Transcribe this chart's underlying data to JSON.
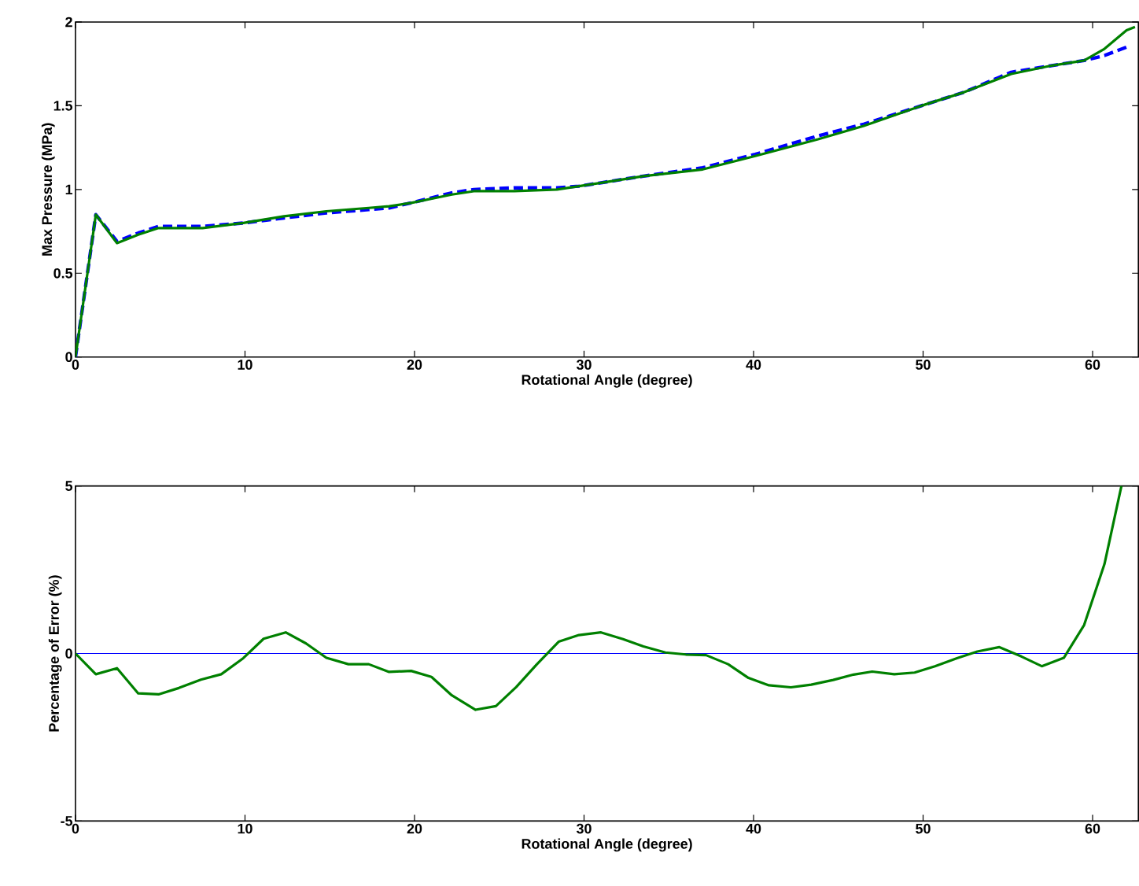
{
  "chart_data": [
    {
      "type": "line",
      "xlabel": "Rotational Angle (degree)",
      "ylabel": "Max Pressure (MPa)",
      "xlim": [
        0,
        62.7
      ],
      "ylim": [
        0,
        2
      ],
      "xticks": [
        0,
        10,
        20,
        30,
        40,
        50,
        60
      ],
      "yticks": [
        0,
        0.5,
        1,
        1.5,
        2
      ],
      "series": [
        {
          "color": "#0000ff",
          "line_style": "dashed",
          "x": [
            0,
            1.2,
            2.45,
            3.7,
            4.9,
            7.5,
            9.9,
            12.3,
            14.8,
            17.3,
            18.5,
            19.8,
            22.2,
            23.5,
            25.9,
            28.4,
            29.7,
            31.0,
            33.5,
            37.0,
            40.1,
            43.8,
            46.5,
            49.9,
            52.4,
            55.2,
            57.6,
            59.5,
            60.7,
            62.0
          ],
          "values": [
            0,
            0.85,
            0.69,
            0.74,
            0.78,
            0.78,
            0.8,
            0.83,
            0.86,
            0.88,
            0.89,
            0.92,
            0.98,
            1.0,
            1.01,
            1.01,
            1.02,
            1.04,
            1.08,
            1.13,
            1.21,
            1.32,
            1.39,
            1.5,
            1.58,
            1.7,
            1.74,
            1.77,
            1.8,
            1.85
          ]
        },
        {
          "color": "#008000",
          "line_style": "solid",
          "x": [
            0,
            1.2,
            2.45,
            3.7,
            4.9,
            7.5,
            9.9,
            12.3,
            14.8,
            17.3,
            18.5,
            19.8,
            22.2,
            23.5,
            25.9,
            28.4,
            29.7,
            31.0,
            33.5,
            37.0,
            40.1,
            43.8,
            46.5,
            49.9,
            52.4,
            55.2,
            57.6,
            59.5,
            60.7,
            62.0,
            62.5
          ],
          "values": [
            0,
            0.85,
            0.68,
            0.73,
            0.77,
            0.77,
            0.8,
            0.84,
            0.87,
            0.89,
            0.9,
            0.92,
            0.97,
            0.99,
            0.99,
            1.0,
            1.02,
            1.04,
            1.08,
            1.12,
            1.2,
            1.3,
            1.38,
            1.5,
            1.58,
            1.69,
            1.74,
            1.77,
            1.84,
            1.95,
            1.97
          ]
        }
      ]
    },
    {
      "type": "line",
      "xlabel": "Rotational Angle (degree)",
      "ylabel": "Percentage of Error (%)",
      "xlim": [
        0,
        62.7
      ],
      "ylim": [
        -5,
        5
      ],
      "xticks": [
        0,
        10,
        20,
        30,
        40,
        50,
        60
      ],
      "yticks": [
        -5,
        0,
        5
      ],
      "ref_lines": [
        {
          "axis": "y",
          "value": 0,
          "color": "#0000ff",
          "line_style": "solid"
        }
      ],
      "series": [
        {
          "color": "#008000",
          "line_style": "solid",
          "x": [
            0,
            1.2,
            2.45,
            3.7,
            4.9,
            6.1,
            7.4,
            8.6,
            9.9,
            11.1,
            12.4,
            13.6,
            14.8,
            16.1,
            17.3,
            18.5,
            19.8,
            21.0,
            22.2,
            23.6,
            24.8,
            26.0,
            27.2,
            28.5,
            29.7,
            31.0,
            32.3,
            33.5,
            34.8,
            36.0,
            37.2,
            38.5,
            39.7,
            40.9,
            42.2,
            43.4,
            44.7,
            45.9,
            47.0,
            48.3,
            49.5,
            50.7,
            52.0,
            53.2,
            54.5,
            55.8,
            57.0,
            58.3,
            59.5,
            60.7,
            61.7
          ],
          "values": [
            0,
            -0.62,
            -0.44,
            -1.19,
            -1.22,
            -1.03,
            -0.78,
            -0.62,
            -0.14,
            0.44,
            0.63,
            0.3,
            -0.13,
            -0.32,
            -0.32,
            -0.55,
            -0.52,
            -0.7,
            -1.25,
            -1.68,
            -1.57,
            -1.0,
            -0.33,
            0.35,
            0.55,
            0.63,
            0.43,
            0.21,
            0.03,
            -0.03,
            -0.05,
            -0.32,
            -0.73,
            -0.95,
            -1.01,
            -0.93,
            -0.79,
            -0.63,
            -0.54,
            -0.62,
            -0.57,
            -0.38,
            -0.14,
            0.06,
            0.19,
            -0.09,
            -0.38,
            -0.13,
            0.85,
            2.67,
            5.0
          ]
        }
      ]
    }
  ]
}
